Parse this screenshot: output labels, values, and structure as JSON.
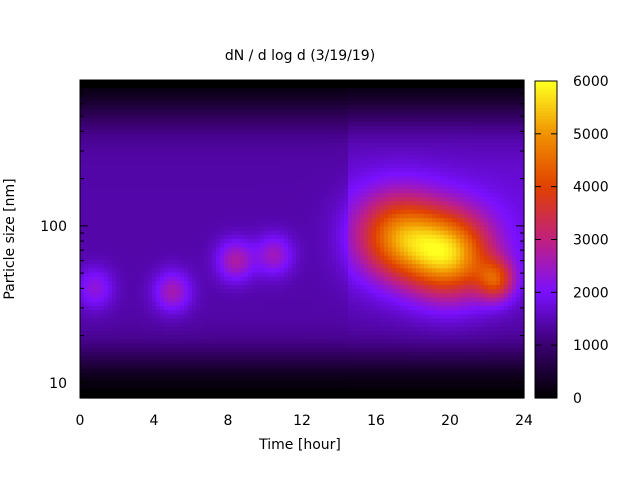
{
  "chart_data": {
    "type": "heatmap",
    "title": "dN / d log d (3/19/19)",
    "xlabel": "Time [hour]",
    "ylabel": "Particle size [nm]",
    "xlim": [
      0,
      24
    ],
    "ylim": [
      8,
      850
    ],
    "y_scale": "log",
    "x_ticks": [
      "0",
      "4",
      "8",
      "12",
      "16",
      "20",
      "24"
    ],
    "y_ticks": [
      "10",
      "100"
    ],
    "colorbar": {
      "range": [
        0,
        6000
      ],
      "ticks": [
        "0",
        "1000",
        "2000",
        "3000",
        "4000",
        "5000",
        "6000"
      ],
      "colors": [
        "#000000",
        "#3a0070",
        "#7a10ff",
        "#c02080",
        "#e04000",
        "#f09000",
        "#ffff20"
      ]
    },
    "features": [
      {
        "time": 0.8,
        "size_nm": 40,
        "value": 2300
      },
      {
        "time": 5.0,
        "size_nm": 38,
        "value": 2600
      },
      {
        "time": 8.4,
        "size_nm": 60,
        "value": 2700
      },
      {
        "time": 10.5,
        "size_nm": 65,
        "value": 2500
      },
      {
        "time": 17.2,
        "size_nm": 85,
        "value": 4300
      },
      {
        "time": 20.0,
        "size_nm": 65,
        "value": 5000
      },
      {
        "time": 22.5,
        "size_nm": 45,
        "value": 3500
      }
    ],
    "background_value": 1400,
    "grid": false
  }
}
